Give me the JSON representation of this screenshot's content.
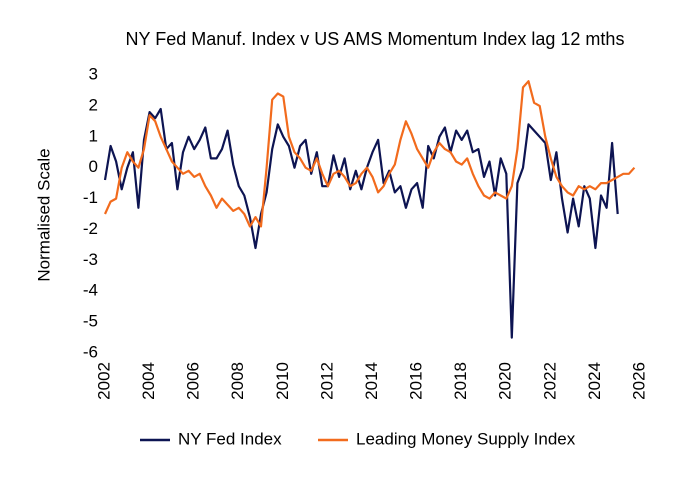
{
  "chart_data": {
    "type": "line",
    "title": "NY Fed Manuf. Index v US AMS Momentum Index lag 12 mths",
    "y_label": "Normalised Scale",
    "x": [
      2002,
      2002.25,
      2002.5,
      2002.75,
      2003,
      2003.25,
      2003.5,
      2003.75,
      2004,
      2004.25,
      2004.5,
      2004.75,
      2005,
      2005.25,
      2005.5,
      2005.75,
      2006,
      2006.25,
      2006.5,
      2006.75,
      2007,
      2007.25,
      2007.5,
      2007.75,
      2008,
      2008.25,
      2008.5,
      2008.75,
      2009,
      2009.25,
      2009.5,
      2009.75,
      2010,
      2010.25,
      2010.5,
      2010.75,
      2011,
      2011.25,
      2011.5,
      2011.75,
      2012,
      2012.25,
      2012.5,
      2012.75,
      2013,
      2013.25,
      2013.5,
      2013.75,
      2014,
      2014.25,
      2014.5,
      2014.75,
      2015,
      2015.25,
      2015.5,
      2015.75,
      2016,
      2016.25,
      2016.5,
      2016.75,
      2017,
      2017.25,
      2017.5,
      2017.75,
      2018,
      2018.25,
      2018.5,
      2018.75,
      2019,
      2019.25,
      2019.5,
      2019.75,
      2020,
      2020.25,
      2020.5,
      2020.75,
      2021,
      2021.25,
      2021.5,
      2021.75,
      2022,
      2022.25,
      2022.5,
      2022.75,
      2023,
      2023.25,
      2023.5,
      2023.75,
      2024,
      2024.25,
      2024.5,
      2024.75,
      2025,
      2025.25,
      2025.5,
      2025.75,
      2026
    ],
    "series": [
      {
        "name": "NY Fed Index",
        "color": "#0d1452",
        "values": [
          -0.4,
          0.7,
          0.2,
          -0.7,
          0.0,
          0.5,
          -1.3,
          0.9,
          1.8,
          1.6,
          1.9,
          0.6,
          0.8,
          -0.7,
          0.5,
          1.0,
          0.6,
          0.9,
          1.3,
          0.3,
          0.3,
          0.6,
          1.2,
          0.1,
          -0.6,
          -0.9,
          -1.6,
          -2.6,
          -1.5,
          -0.8,
          0.6,
          1.4,
          1.0,
          0.7,
          0.0,
          0.7,
          0.9,
          -0.2,
          0.5,
          -0.6,
          -0.6,
          0.4,
          -0.3,
          0.3,
          -0.7,
          -0.1,
          -0.7,
          0.0,
          0.5,
          0.9,
          -0.5,
          -0.1,
          -0.8,
          -0.6,
          -1.3,
          -0.7,
          -0.5,
          -1.3,
          0.7,
          0.3,
          1.0,
          1.3,
          0.5,
          1.2,
          0.9,
          1.2,
          0.5,
          0.6,
          -0.3,
          0.2,
          -0.9,
          0.3,
          -0.2,
          -5.5,
          -0.5,
          0.0,
          1.4,
          1.2,
          1.0,
          0.8,
          -0.4,
          0.5,
          -1.0,
          -2.1,
          -1.0,
          -1.9,
          -0.6,
          -1.0,
          -2.6,
          -0.9,
          -1.3,
          0.8,
          -1.5,
          null,
          null,
          null,
          null
        ]
      },
      {
        "name": "Leading Money Supply Index",
        "color": "#f26b1d",
        "values": [
          -1.5,
          -1.1,
          -1.0,
          0.0,
          0.5,
          0.2,
          0.0,
          0.6,
          1.7,
          1.5,
          1.0,
          0.6,
          0.2,
          0.0,
          -0.2,
          -0.1,
          -0.3,
          -0.2,
          -0.6,
          -0.9,
          -1.3,
          -1.0,
          -1.2,
          -1.4,
          -1.3,
          -1.5,
          -1.9,
          -1.6,
          -1.9,
          0.0,
          2.2,
          2.4,
          2.3,
          1.0,
          0.5,
          0.3,
          0.0,
          -0.1,
          0.3,
          -0.2,
          -0.6,
          -0.2,
          -0.1,
          -0.3,
          -0.6,
          -0.5,
          -0.2,
          0.0,
          -0.3,
          -0.8,
          -0.6,
          -0.2,
          0.1,
          0.9,
          1.5,
          1.1,
          0.6,
          0.3,
          0.0,
          0.5,
          0.8,
          0.6,
          0.5,
          0.2,
          0.1,
          0.3,
          -0.2,
          -0.6,
          -0.9,
          -1.0,
          -0.8,
          -0.9,
          -1.0,
          -0.6,
          0.6,
          2.6,
          2.8,
          2.1,
          2.0,
          1.0,
          0.3,
          -0.3,
          -0.6,
          -0.8,
          -0.9,
          -0.6,
          -0.7,
          -0.6,
          -0.7,
          -0.5,
          -0.5,
          -0.4,
          -0.3,
          -0.2,
          -0.2,
          0.0,
          null
        ]
      }
    ],
    "xlim": [
      2001.7,
      2026.3
    ],
    "xticks": [
      2002,
      2004,
      2006,
      2008,
      2010,
      2012,
      2014,
      2016,
      2018,
      2020,
      2022,
      2024,
      2026
    ],
    "ylim": [
      -6,
      3
    ],
    "yticks": [
      -6,
      -5,
      -4,
      -3,
      -2,
      -1,
      0,
      1,
      2,
      3
    ],
    "grid": false,
    "legend": "bottom"
  }
}
